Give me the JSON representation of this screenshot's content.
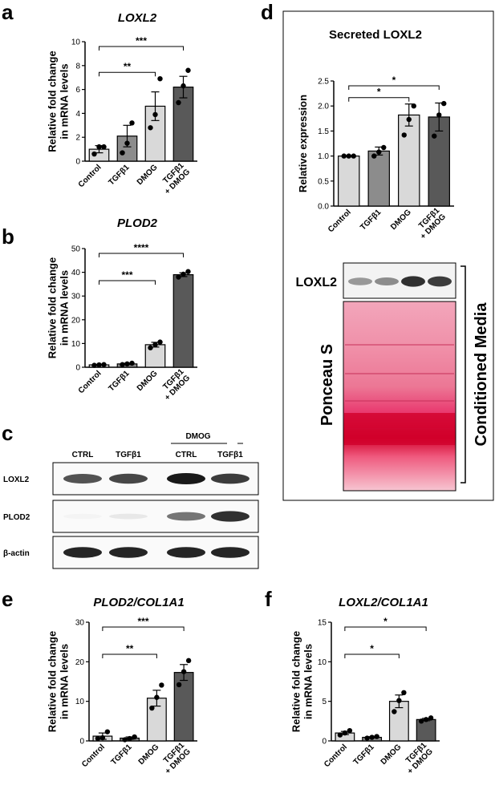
{
  "panels": {
    "a": "a",
    "b": "b",
    "c": "c",
    "d": "d",
    "e": "e",
    "f": "f"
  },
  "blot": {
    "groups": {
      "dmog": "DMOG"
    },
    "lanes": [
      "CTRL",
      "TGFβ1",
      "CTRL",
      "TGFβ1"
    ],
    "rows": [
      "LOXL2",
      "PLOD2",
      "β-actin"
    ],
    "intensities": [
      [
        0.75,
        0.8,
        1.0,
        0.85
      ],
      [
        0.05,
        0.1,
        0.6,
        0.9
      ],
      [
        0.95,
        0.95,
        0.95,
        0.95
      ]
    ]
  },
  "secreted": {
    "blot_label": "LOXL2",
    "ponceau_label": "Ponceau S",
    "bracket_label": "Conditioned Media",
    "loxl2_intensity": [
      0.45,
      0.5,
      0.9,
      0.85
    ]
  },
  "colors": {
    "control": "#d9d9d9",
    "tgfb1": "#8c8c8c",
    "dmog": "#d9d9d9",
    "tgfb1_dmog": "#595959",
    "ponceau": "#e8336b",
    "ponceau_band": "#d1002a"
  },
  "chart_data": [
    {
      "id": "a",
      "type": "bar",
      "title": "LOXL2",
      "ylabel": "Relative fold change in mRNA levels",
      "categories": [
        "Control",
        "TGFβ1",
        "DMOG",
        "TGFβ1 + DMOG"
      ],
      "values": [
        1.0,
        2.1,
        4.6,
        6.2
      ],
      "errors": [
        0.3,
        0.9,
        1.2,
        0.9
      ],
      "points": [
        [
          0.6,
          1.2,
          1.2
        ],
        [
          0.7,
          1.5,
          3.2
        ],
        [
          2.8,
          3.9,
          6.9
        ],
        [
          4.9,
          6.3,
          7.6
        ]
      ],
      "ylim": [
        0,
        10
      ],
      "yticks": [
        0,
        2,
        4,
        6,
        8,
        10
      ],
      "significance": [
        {
          "from": 0,
          "to": 2,
          "label": "**"
        },
        {
          "from": 0,
          "to": 3,
          "label": "***"
        }
      ]
    },
    {
      "id": "b",
      "type": "bar",
      "title": "PLOD2",
      "ylabel": "Relative fold change in mRNA levels",
      "categories": [
        "Control",
        "TGFβ1",
        "DMOG",
        "TGFβ1 + DMOG"
      ],
      "values": [
        1.0,
        1.4,
        9.5,
        39.0
      ],
      "errors": [
        0.2,
        0.3,
        1.0,
        0.8
      ],
      "points": [
        [
          0.8,
          1.0,
          1.1
        ],
        [
          1.1,
          1.4,
          1.7
        ],
        [
          8.2,
          9.5,
          10.6
        ],
        [
          38.0,
          39.2,
          40.3
        ]
      ],
      "ylim": [
        0,
        50
      ],
      "yticks": [
        0,
        10,
        20,
        30,
        40,
        50
      ],
      "significance": [
        {
          "from": 0,
          "to": 2,
          "label": "***"
        },
        {
          "from": 0,
          "to": 3,
          "label": "****"
        }
      ]
    },
    {
      "id": "d",
      "type": "bar",
      "title": "Secreted LOXL2",
      "ylabel": "Relative expression",
      "categories": [
        "Control",
        "TGFβ1",
        "DMOG",
        "TGFβ1 + DMOG"
      ],
      "values": [
        1.0,
        1.1,
        1.82,
        1.78
      ],
      "errors": [
        0.01,
        0.08,
        0.22,
        0.28
      ],
      "points": [
        [
          1.0,
          1.0,
          1.0
        ],
        [
          1.0,
          1.08,
          1.17
        ],
        [
          1.42,
          1.73,
          2.0
        ],
        [
          1.4,
          1.82,
          2.05
        ]
      ],
      "ylim": [
        0,
        2.5
      ],
      "yticks": [
        "0.0",
        "0.5",
        "1.0",
        "1.5",
        "2.0",
        "2.5"
      ],
      "significance": [
        {
          "from": 0,
          "to": 2,
          "label": "*"
        },
        {
          "from": 0,
          "to": 3,
          "label": "*"
        }
      ]
    },
    {
      "id": "e",
      "type": "bar",
      "title": "PLOD2/COL1A1",
      "ylabel": "Relative fold change in mRNA levels",
      "categories": [
        "Control",
        "TGFβ1",
        "DMOG",
        "TGFβ1 + DMOG"
      ],
      "values": [
        1.2,
        0.7,
        10.8,
        17.3
      ],
      "errors": [
        0.8,
        0.3,
        2.0,
        2.0
      ],
      "points": [
        [
          0.6,
          0.8,
          2.3
        ],
        [
          0.3,
          0.6,
          1.0
        ],
        [
          8.3,
          11.0,
          14.1
        ],
        [
          14.2,
          17.5,
          20.3
        ]
      ],
      "ylim": [
        0,
        30
      ],
      "yticks": [
        0,
        10,
        20,
        30
      ],
      "significance": [
        {
          "from": 0,
          "to": 2,
          "label": "**"
        },
        {
          "from": 0,
          "to": 3,
          "label": "***"
        }
      ]
    },
    {
      "id": "f",
      "type": "bar",
      "title": "LOXL2/COL1A1",
      "ylabel": "Relative fold change in mRNA levels",
      "categories": [
        "Control",
        "TGFβ1",
        "DMOG",
        "TGFβ1 + DMOG"
      ],
      "values": [
        1.0,
        0.45,
        5.0,
        2.7
      ],
      "errors": [
        0.2,
        0.08,
        0.8,
        0.15
      ],
      "points": [
        [
          0.75,
          1.0,
          1.3
        ],
        [
          0.35,
          0.45,
          0.55
        ],
        [
          3.7,
          5.1,
          6.1
        ],
        [
          2.5,
          2.7,
          2.9
        ]
      ],
      "ylim": [
        0,
        15
      ],
      "yticks": [
        0,
        5,
        10,
        15
      ],
      "significance": [
        {
          "from": 0,
          "to": 2,
          "label": "*"
        },
        {
          "from": 0,
          "to": 3,
          "label": "*"
        }
      ]
    }
  ]
}
